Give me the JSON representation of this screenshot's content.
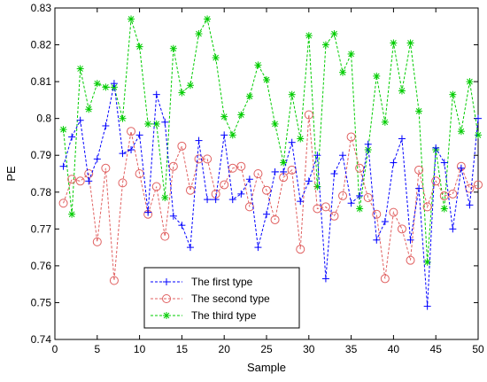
{
  "chart_data": {
    "type": "line",
    "title": "",
    "xlabel": "Sample",
    "ylabel": "PE",
    "xlim": [
      0,
      50
    ],
    "ylim": [
      0.74,
      0.83
    ],
    "xticks": [
      0,
      5,
      10,
      15,
      20,
      25,
      30,
      35,
      40,
      45,
      50
    ],
    "yticks": [
      "0.74",
      "0.75",
      "0.76",
      "0.77",
      "0.78",
      "0.79",
      "0.8",
      "0.81",
      "0.82",
      "0.83"
    ],
    "grid": false,
    "legend_position": "lower-left",
    "x": [
      1,
      2,
      3,
      4,
      5,
      6,
      7,
      8,
      9,
      10,
      11,
      12,
      13,
      14,
      15,
      16,
      17,
      18,
      19,
      20,
      21,
      22,
      23,
      24,
      25,
      26,
      27,
      28,
      29,
      30,
      31,
      32,
      33,
      34,
      35,
      36,
      37,
      38,
      39,
      40,
      41,
      42,
      43,
      44,
      45,
      46,
      47,
      48,
      49,
      50
    ],
    "series": [
      {
        "name": "The first type",
        "color": "#0000ff",
        "marker": "plus",
        "values": [
          0.787,
          0.795,
          0.7995,
          0.783,
          0.789,
          0.798,
          0.8095,
          0.7905,
          0.7915,
          0.7955,
          0.7745,
          0.8065,
          0.799,
          0.7735,
          0.771,
          0.765,
          0.794,
          0.778,
          0.778,
          0.7955,
          0.778,
          0.7795,
          0.7835,
          0.765,
          0.774,
          0.7855,
          0.7855,
          0.7935,
          0.7775,
          0.783,
          0.79,
          0.7565,
          0.785,
          0.79,
          0.777,
          0.779,
          0.793,
          0.767,
          0.772,
          0.788,
          0.7945,
          0.767,
          0.781,
          0.749,
          0.792,
          0.788,
          0.77,
          0.7865,
          0.7765,
          0.8
        ]
      },
      {
        "name": "The second type",
        "color": "#e06060",
        "marker": "circle",
        "values": [
          0.777,
          0.7835,
          0.783,
          0.785,
          0.7665,
          0.7865,
          0.756,
          0.7825,
          0.7965,
          0.785,
          0.774,
          0.7815,
          0.768,
          0.787,
          0.7925,
          0.7805,
          0.789,
          0.789,
          0.7795,
          0.782,
          0.7865,
          0.787,
          0.776,
          0.785,
          0.7805,
          0.7725,
          0.784,
          0.786,
          0.7645,
          0.801,
          0.7755,
          0.776,
          0.7735,
          0.779,
          0.795,
          0.7865,
          0.7785,
          0.774,
          0.7565,
          0.7745,
          0.77,
          0.7615,
          0.786,
          0.776,
          0.783,
          0.779,
          0.7795,
          0.787,
          0.781,
          0.782
        ]
      },
      {
        "name": "The third type",
        "color": "#00cc00",
        "marker": "star",
        "values": [
          0.797,
          0.774,
          0.8135,
          0.8025,
          0.8095,
          0.8085,
          0.8085,
          0.8,
          0.827,
          0.8195,
          0.7985,
          0.7985,
          0.7785,
          0.819,
          0.807,
          0.809,
          0.823,
          0.827,
          0.8165,
          0.8005,
          0.7955,
          0.801,
          0.806,
          0.8145,
          0.8105,
          0.7985,
          0.788,
          0.8065,
          0.7945,
          0.8225,
          0.7815,
          0.82,
          0.823,
          0.8125,
          0.8175,
          0.7755,
          0.7915,
          0.8115,
          0.799,
          0.8205,
          0.8075,
          0.8205,
          0.802,
          0.761,
          0.7915,
          0.7755,
          0.8065,
          0.7965,
          0.81,
          0.7955
        ]
      }
    ]
  }
}
